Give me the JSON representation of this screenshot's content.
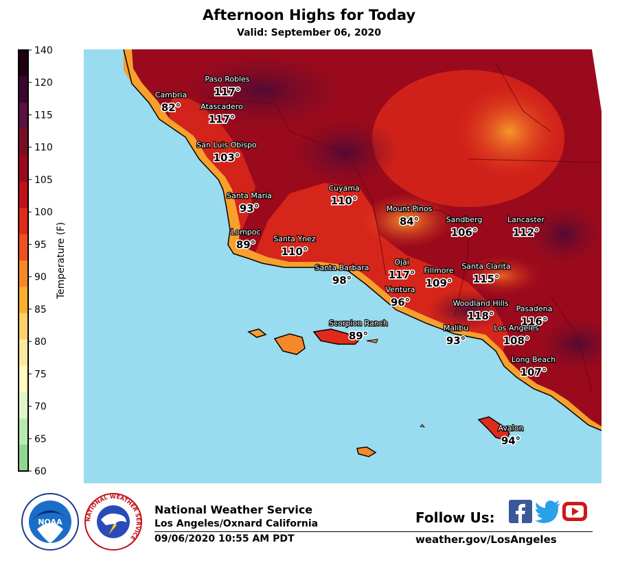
{
  "header": {
    "title": "Afternoon Highs for Today",
    "subtitle": "Valid: September 06, 2020"
  },
  "colorbar": {
    "label": "Temperature (F)",
    "ticks": [
      "140",
      "120",
      "115",
      "110",
      "105",
      "100",
      "95",
      "90",
      "85",
      "80",
      "75",
      "70",
      "65",
      "60"
    ],
    "colors": [
      "#1e0010",
      "#3a0630",
      "#5a1040",
      "#7a0d24",
      "#9a0a1c",
      "#c01018",
      "#e02a1a",
      "#f05022",
      "#f7882a",
      "#f9b02e",
      "#fbd26a",
      "#fde8a0",
      "#fffcc0",
      "#e0f8c8",
      "#b8eab0",
      "#90d690"
    ]
  },
  "map": {
    "ocean_color": "#99dbef",
    "cities": [
      {
        "name": "Paso Robles",
        "temp": "117°"
      },
      {
        "name": "Cambria",
        "temp": "82°"
      },
      {
        "name": "Atascadero",
        "temp": "117°"
      },
      {
        "name": "San Luis Obispo",
        "temp": "103°"
      },
      {
        "name": "Cuyama",
        "temp": "110°"
      },
      {
        "name": "Santa Maria",
        "temp": "93°"
      },
      {
        "name": "Mount Pinos",
        "temp": "84°"
      },
      {
        "name": "Sandberg",
        "temp": "106°"
      },
      {
        "name": "Lancaster",
        "temp": "112°"
      },
      {
        "name": "Lompoc",
        "temp": "89°"
      },
      {
        "name": "Santa Ynez",
        "temp": "110°"
      },
      {
        "name": "Ojai",
        "temp": "117°"
      },
      {
        "name": "Fillmore",
        "temp": "109°"
      },
      {
        "name": "Santa Clarita",
        "temp": "115°"
      },
      {
        "name": "Santa Barbara",
        "temp": "98°"
      },
      {
        "name": "Ventura",
        "temp": "96°"
      },
      {
        "name": "Woodland Hills",
        "temp": "118°"
      },
      {
        "name": "Pasadena",
        "temp": "116°"
      },
      {
        "name": "Scorpion Ranch",
        "temp": "89°"
      },
      {
        "name": "Malibu",
        "temp": "93°"
      },
      {
        "name": "Los Angeles",
        "temp": "108°"
      },
      {
        "name": "Long Beach",
        "temp": "107°"
      },
      {
        "name": "Avalon",
        "temp": "94°"
      }
    ]
  },
  "footer": {
    "org": "National Weather Service",
    "office": "Los Angeles/Oxnard California",
    "timestamp": "09/06/2020 10:55 AM PDT",
    "follow_label": "Follow Us:",
    "website": "weather.gov/LosAngeles",
    "noaa_text": "NOAA",
    "nws_ring_text": "NATIONAL WEATHER SERVICE"
  }
}
